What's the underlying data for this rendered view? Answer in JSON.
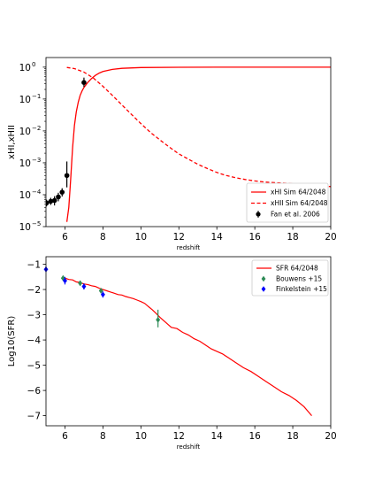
{
  "chart_data": [
    {
      "type": "line",
      "xlabel": "redshift",
      "ylabel": "xHI,xHII",
      "yscale": "log",
      "xlim": [
        5,
        20
      ],
      "ylim": [
        1e-05,
        2
      ],
      "xticks": [
        "6",
        "8",
        "10",
        "12",
        "14",
        "16",
        "18",
        "20"
      ],
      "yticks": [
        {
          "base": "10",
          "exp": "0",
          "value": 1
        },
        {
          "base": "10",
          "exp": "−1",
          "value": 0.1
        },
        {
          "base": "10",
          "exp": "−2",
          "value": 0.01
        },
        {
          "base": "10",
          "exp": "−3",
          "value": 0.001
        },
        {
          "base": "10",
          "exp": "−4",
          "value": 0.0001
        },
        {
          "base": "10",
          "exp": "−5",
          "value": 1e-05
        }
      ],
      "legend_position": "lower right",
      "colors": {
        "sim": "#ff0000",
        "obs": "#000000"
      },
      "series": [
        {
          "name": "xHI Sim 64/2048",
          "style": "solid",
          "x": [
            6.1,
            6.2,
            6.3,
            6.4,
            6.5,
            6.6,
            6.7,
            6.8,
            6.9,
            7.0,
            7.2,
            7.4,
            7.6,
            7.8,
            8.0,
            8.5,
            9.0,
            10,
            12,
            14,
            16,
            18,
            20
          ],
          "y": [
            1.4e-05,
            4e-05,
            0.0003,
            0.003,
            0.015,
            0.04,
            0.08,
            0.13,
            0.18,
            0.23,
            0.33,
            0.44,
            0.55,
            0.65,
            0.73,
            0.85,
            0.92,
            0.97,
            0.99,
            0.995,
            0.997,
            0.998,
            0.998
          ]
        },
        {
          "name": "xHII Sim 64/2048",
          "style": "dashed",
          "x": [
            6.1,
            6.5,
            7.0,
            7.5,
            8.0,
            8.5,
            9.0,
            9.5,
            10,
            10.5,
            11,
            11.5,
            12,
            12.5,
            13,
            13.5,
            14,
            14.5,
            15,
            15.5,
            16,
            16.5,
            17,
            17.5,
            18,
            18.5,
            19,
            19.5,
            20
          ],
          "y": [
            0.98,
            0.9,
            0.7,
            0.45,
            0.25,
            0.13,
            0.065,
            0.033,
            0.017,
            0.009,
            0.0052,
            0.0031,
            0.0019,
            0.0013,
            0.0009,
            0.00066,
            0.0005,
            0.0004,
            0.00034,
            0.0003,
            0.00027,
            0.00025,
            0.00024,
            0.00023,
            0.00022,
            0.00021,
            0.0002,
            0.00019,
            0.00018
          ]
        },
        {
          "name": "Fan et al. 2006",
          "style": "errorbar",
          "points": [
            {
              "x": 5.03,
              "y": 5.5e-05,
              "ylo": 4.3e-05,
              "yhi": 7e-05
            },
            {
              "x": 5.25,
              "y": 6.2e-05,
              "ylo": 4.8e-05,
              "yhi": 8e-05
            },
            {
              "x": 5.45,
              "y": 6.6e-05,
              "ylo": 4.6e-05,
              "yhi": 9e-05
            },
            {
              "x": 5.65,
              "y": 8.5e-05,
              "ylo": 6.2e-05,
              "yhi": 0.000115
            },
            {
              "x": 5.85,
              "y": 0.00012,
              "ylo": 8.8e-05,
              "yhi": 0.00016
            },
            {
              "x": 6.1,
              "y": 0.0004,
              "ylo": 0.00017,
              "yhi": 0.0011
            },
            {
              "x": 7.0,
              "y": 0.33,
              "ylo": 0.24,
              "yhi": 0.47
            }
          ]
        }
      ]
    },
    {
      "type": "line",
      "xlabel": "redshift",
      "ylabel": "Log10(SFR)",
      "xlim": [
        5,
        20
      ],
      "ylim": [
        -7.4,
        -0.7
      ],
      "xticks": [
        "6",
        "8",
        "10",
        "12",
        "14",
        "16",
        "18",
        "20"
      ],
      "yticks": [
        "−1",
        "−2",
        "−3",
        "−4",
        "−5",
        "−6",
        "−7"
      ],
      "legend_position": "upper right",
      "colors": {
        "sim": "#ff0000",
        "bouwens": "#2e8b57",
        "finkelstein": "#0000ff"
      },
      "series": [
        {
          "name": "SFR 64/2048",
          "style": "solid",
          "x": [
            6.0,
            6.2,
            6.4,
            6.6,
            6.8,
            7.0,
            7.2,
            7.4,
            7.6,
            7.8,
            8.0,
            8.2,
            8.4,
            8.6,
            8.8,
            9.0,
            9.2,
            9.4,
            9.6,
            9.8,
            10.0,
            10.2,
            10.4,
            10.6,
            10.8,
            11.0,
            11.3,
            11.6,
            11.9,
            12.2,
            12.5,
            12.8,
            13.1,
            13.4,
            13.7,
            14.0,
            14.3,
            14.6,
            15.0,
            15.4,
            15.8,
            16.2,
            16.6,
            17.0,
            17.4,
            17.8,
            18.2,
            18.6,
            19.0
          ],
          "y": [
            -1.55,
            -1.6,
            -1.62,
            -1.7,
            -1.72,
            -1.78,
            -1.8,
            -1.85,
            -1.88,
            -1.95,
            -2.0,
            -2.05,
            -2.1,
            -2.15,
            -2.2,
            -2.22,
            -2.28,
            -2.32,
            -2.36,
            -2.42,
            -2.48,
            -2.55,
            -2.68,
            -2.8,
            -2.95,
            -3.1,
            -3.3,
            -3.5,
            -3.55,
            -3.7,
            -3.8,
            -3.95,
            -4.05,
            -4.2,
            -4.35,
            -4.45,
            -4.55,
            -4.7,
            -4.9,
            -5.1,
            -5.25,
            -5.45,
            -5.65,
            -5.85,
            -6.05,
            -6.2,
            -6.4,
            -6.65,
            -7.0
          ]
        },
        {
          "name": "Bouwens +15",
          "style": "errorbar",
          "points": [
            {
              "x": 5.9,
              "y": -1.55,
              "ylo": -1.65,
              "yhi": -1.45
            },
            {
              "x": 6.8,
              "y": -1.75,
              "ylo": -1.85,
              "yhi": -1.65
            },
            {
              "x": 7.9,
              "y": -2.05,
              "ylo": -2.15,
              "yhi": -1.95
            },
            {
              "x": 10.9,
              "y": -3.2,
              "ylo": -3.5,
              "yhi": -2.8
            }
          ]
        },
        {
          "name": "Finkelstein +15",
          "style": "errorbar",
          "points": [
            {
              "x": 5.0,
              "y": -1.2,
              "ylo": -1.3,
              "yhi": -1.1
            },
            {
              "x": 6.0,
              "y": -1.65,
              "ylo": -1.8,
              "yhi": -1.5
            },
            {
              "x": 7.0,
              "y": -1.88,
              "ylo": -2.0,
              "yhi": -1.76
            },
            {
              "x": 8.0,
              "y": -2.2,
              "ylo": -2.32,
              "yhi": -2.08
            }
          ]
        }
      ]
    }
  ]
}
